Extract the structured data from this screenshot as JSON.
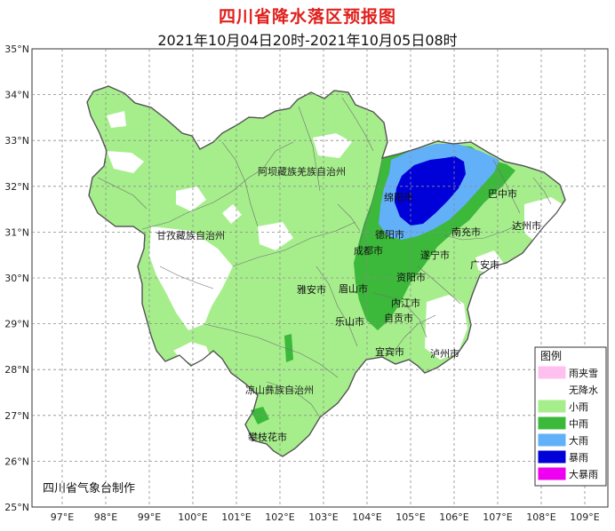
{
  "header": {
    "title": "四川省降水落区预报图",
    "subtitle": "2021年10月04日20时-2021年10月05日08时"
  },
  "axes": {
    "lat_labels": [
      "35°N",
      "34°N",
      "33°N",
      "32°N",
      "31°N",
      "30°N",
      "29°N",
      "28°N",
      "27°N",
      "26°N",
      "25°N"
    ],
    "lon_labels": [
      "97°E",
      "98°E",
      "99°E",
      "100°E",
      "101°E",
      "102°E",
      "103°E",
      "104°E",
      "105°E",
      "106°E",
      "107°E",
      "108°E",
      "109°E"
    ]
  },
  "prefectures": [
    {
      "name": "阿坝藏族羌族自治州"
    },
    {
      "name": "甘孜藏族自治州"
    },
    {
      "name": "凉山彝族自治州"
    }
  ],
  "cities": [
    {
      "name": "绵阳市"
    },
    {
      "name": "巴中市"
    },
    {
      "name": "德阳市"
    },
    {
      "name": "南充市"
    },
    {
      "name": "达州市"
    },
    {
      "name": "成都市"
    },
    {
      "name": "遂宁市"
    },
    {
      "name": "广安市"
    },
    {
      "name": "资阳市"
    },
    {
      "name": "雅安市"
    },
    {
      "name": "眉山市"
    },
    {
      "name": "内江市"
    },
    {
      "name": "乐山市"
    },
    {
      "name": "自贡市"
    },
    {
      "name": "宜宾市"
    },
    {
      "name": "泸州市"
    },
    {
      "name": "攀枝花市"
    }
  ],
  "credit": "四川省气象台制作",
  "legend": {
    "title": "图例",
    "items": [
      {
        "label": "雨夹雪",
        "color": "#ffc0f0"
      },
      {
        "label": "无降水",
        "color": "#ffffff"
      },
      {
        "label": "小雨",
        "color": "#a6ee8c"
      },
      {
        "label": "中雨",
        "color": "#3cb83a"
      },
      {
        "label": "大雨",
        "color": "#62b0f8"
      },
      {
        "label": "暴雨",
        "color": "#0000d8"
      },
      {
        "label": "大暴雨",
        "color": "#f000f0"
      }
    ]
  },
  "colors": {
    "frame": "#333333",
    "grid": "#8c8c8c",
    "boundary": "#707070",
    "province_border": "#555555"
  }
}
